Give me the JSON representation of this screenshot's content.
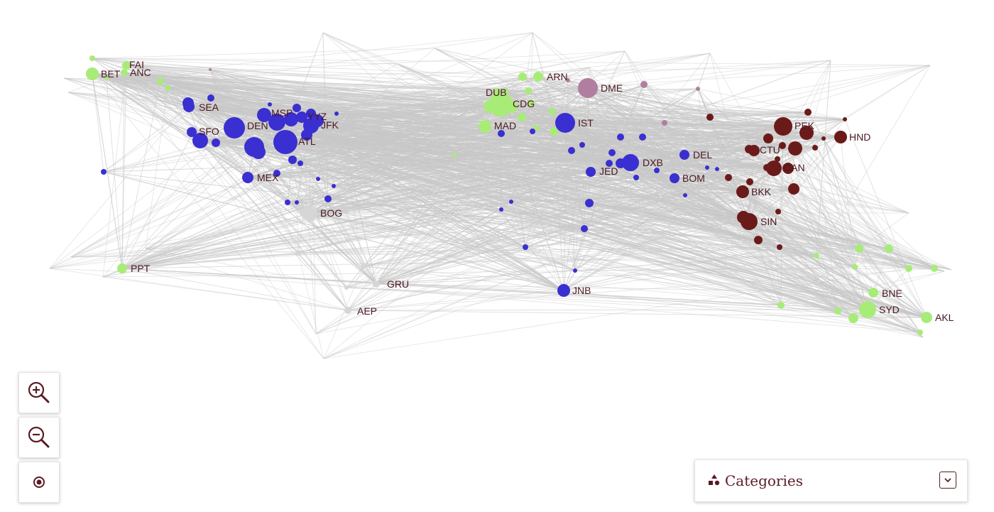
{
  "controls": {
    "zoom_in": "zoom-in-icon",
    "zoom_out": "zoom-out-icon",
    "recenter": "target-icon"
  },
  "categories_panel": {
    "title": "Categories",
    "icon": "shapes-icon",
    "toggle_icon": "chevron-down-icon"
  },
  "colors": {
    "edge": "#c8c8c8",
    "americas_europe_hub": "#3a2fd0",
    "green_cluster": "#a8ec78",
    "asia_cluster": "#6b1a1a",
    "pink_cluster": "#b07ea0",
    "gray_cluster": "#d6d6d6",
    "label": "#4a1820"
  },
  "airports": [
    {
      "code": "FAI"
    },
    {
      "code": "BET"
    },
    {
      "code": "ANC"
    },
    {
      "code": "SEA"
    },
    {
      "code": "SFO"
    },
    {
      "code": "DEN"
    },
    {
      "code": "MSP"
    },
    {
      "code": "YYZ"
    },
    {
      "code": "JFK"
    },
    {
      "code": "ATL"
    },
    {
      "code": "MEX"
    },
    {
      "code": "BOG"
    },
    {
      "code": "PPT"
    },
    {
      "code": "GRU"
    },
    {
      "code": "AEP"
    },
    {
      "code": "DUB"
    },
    {
      "code": "CDG"
    },
    {
      "code": "MAD"
    },
    {
      "code": "ARN"
    },
    {
      "code": "DME"
    },
    {
      "code": "IST"
    },
    {
      "code": "JED"
    },
    {
      "code": "DXB"
    },
    {
      "code": "DEL"
    },
    {
      "code": "BOM"
    },
    {
      "code": "JNB"
    },
    {
      "code": "PEK"
    },
    {
      "code": "HND"
    },
    {
      "code": "CTU"
    },
    {
      "code": "CAN"
    },
    {
      "code": "BKK"
    },
    {
      "code": "SIN"
    },
    {
      "code": "BNE"
    },
    {
      "code": "SYD"
    },
    {
      "code": "AKL"
    }
  ]
}
